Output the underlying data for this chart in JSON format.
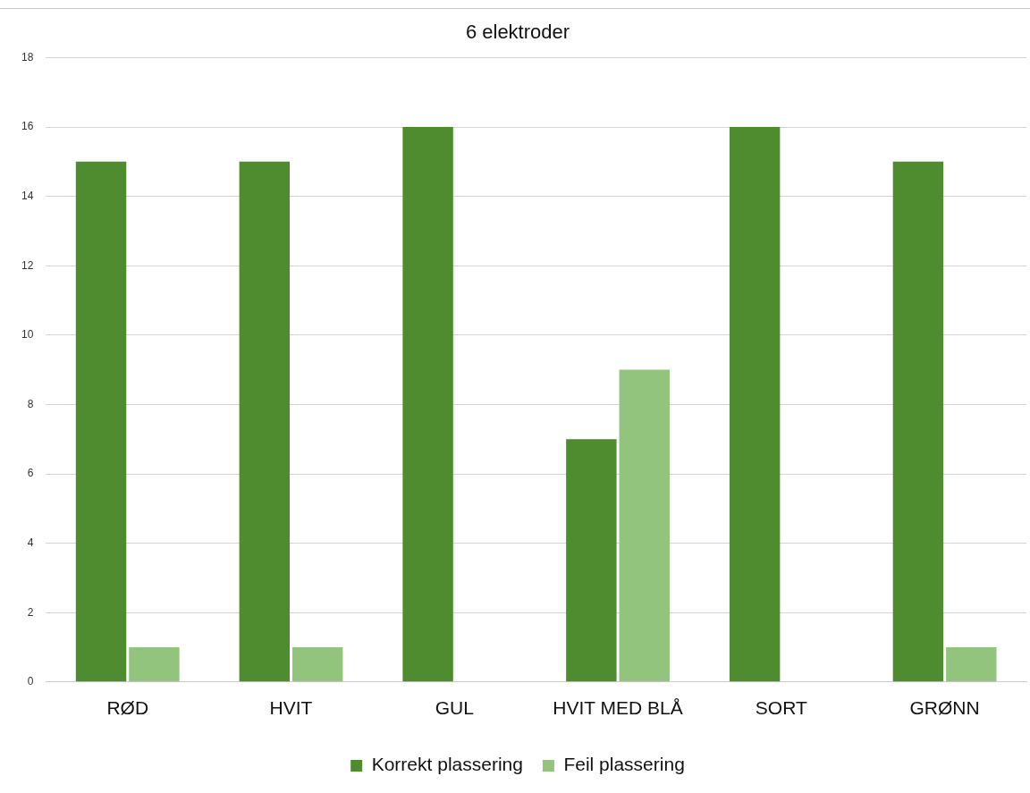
{
  "chart_data": {
    "type": "bar",
    "title": "6 elektroder",
    "categories": [
      "RØD",
      "HVIT",
      "GUL",
      "HVIT MED BLÅ",
      "SORT",
      "GRØNN"
    ],
    "series": [
      {
        "name": "Korrekt plassering",
        "color": "#4f8b2f",
        "values": [
          15,
          15,
          16,
          7,
          16,
          15
        ]
      },
      {
        "name": "Feil plassering",
        "color": "#93c47d",
        "values": [
          1,
          1,
          0,
          9,
          0,
          1
        ]
      }
    ],
    "ylim": [
      0,
      18
    ],
    "yticks": [
      0,
      2,
      4,
      6,
      8,
      10,
      12,
      14,
      16,
      18
    ],
    "grid": "y",
    "legend": "bottom"
  }
}
